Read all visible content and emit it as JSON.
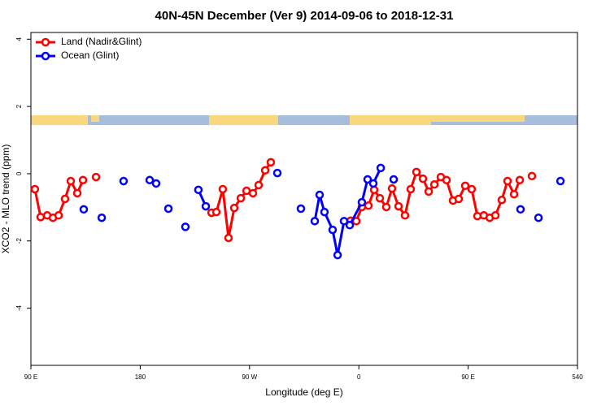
{
  "chart_data": {
    "type": "line",
    "title": "40N-45N December (Ver 9)   2014-09-06 to 2018-12-31",
    "x_label": "Longitude (deg E)",
    "y_label": "XCO2 - MLO trend (ppm)",
    "xlim": [
      90,
      540
    ],
    "ylim": [
      -5.7,
      4.2
    ],
    "xticks": [
      {
        "value": 90,
        "label": "90 E"
      },
      180,
      {
        "value": 270,
        "label": "90 W"
      },
      {
        "value": 360,
        "label": "0"
      },
      {
        "value": 450,
        "label": "90 E"
      },
      540
    ],
    "yticks": [
      4,
      2,
      0,
      -2,
      -4
    ],
    "legend": "top-left",
    "series": [
      {
        "name": "Land (Nadir&Glint)",
        "color": "#ff0000",
        "x": [
          93.3,
          98.0,
          103.4,
          108.1,
          112.8,
          118.1,
          122.8,
          128.2,
          132.9,
          null,
          143.6,
          null,
          238.7,
          242.7,
          248.0,
          252.7,
          257.4,
          262.8,
          267.5,
          272.8,
          277.5,
          282.9,
          287.5,
          null,
          353.2,
          357.9,
          362.5,
          367.9,
          372.6,
          377.3,
          382.6,
          387.3,
          392.7,
          398.0,
          402.7,
          407.4,
          412.8,
          417.5,
          422.2,
          427.5,
          432.2,
          437.5,
          442.2,
          447.6,
          452.9,
          457.6,
          462.9,
          467.7,
          472.4,
          477.7,
          482.4,
          487.8,
          492.5,
          null,
          502.5
        ],
        "values": [
          -0.46,
          -1.29,
          -1.24,
          -1.31,
          -1.24,
          -0.75,
          -0.22,
          -0.58,
          -0.19,
          null,
          -0.1,
          null,
          -1.16,
          -1.14,
          -0.46,
          -1.91,
          -1.02,
          -0.73,
          -0.51,
          -0.58,
          -0.34,
          0.1,
          0.34,
          null,
          -1.4,
          -1.41,
          -0.99,
          -0.95,
          -0.48,
          -0.73,
          -0.99,
          -0.44,
          -0.97,
          -1.24,
          -0.46,
          0.05,
          -0.15,
          -0.53,
          -0.32,
          -0.1,
          -0.19,
          -0.8,
          -0.75,
          -0.36,
          -0.46,
          -1.26,
          -1.24,
          -1.31,
          -1.24,
          -0.78,
          -0.22,
          -0.61,
          -0.19,
          null,
          -0.07
        ]
      },
      {
        "name": "Ocean (Glint)",
        "color": "#0000ff",
        "x": [
          133.5,
          null,
          148.3,
          null,
          166.3,
          null,
          187.8,
          null,
          193.1,
          null,
          203.2,
          null,
          217.2,
          null,
          227.9,
          234.0,
          null,
          292.9,
          null,
          312.3,
          null,
          323.7,
          327.7,
          331.7,
          338.4,
          342.5,
          347.8,
          352.5,
          362.5,
          367.2,
          371.9,
          378.0,
          null,
          388.7,
          null,
          493.1,
          null,
          507.9,
          null,
          526.0
        ],
        "values": [
          -1.06,
          null,
          -1.31,
          null,
          -0.22,
          null,
          -0.19,
          null,
          -0.29,
          null,
          -1.04,
          null,
          -1.58,
          null,
          -0.48,
          -0.97,
          null,
          0.02,
          null,
          -1.04,
          null,
          -1.41,
          -0.63,
          -1.14,
          -1.67,
          -2.42,
          -1.41,
          -1.53,
          -0.85,
          -0.17,
          -0.29,
          0.17,
          null,
          -0.17,
          null,
          -1.06,
          null,
          -1.31,
          null,
          -0.22
        ]
      }
    ]
  }
}
